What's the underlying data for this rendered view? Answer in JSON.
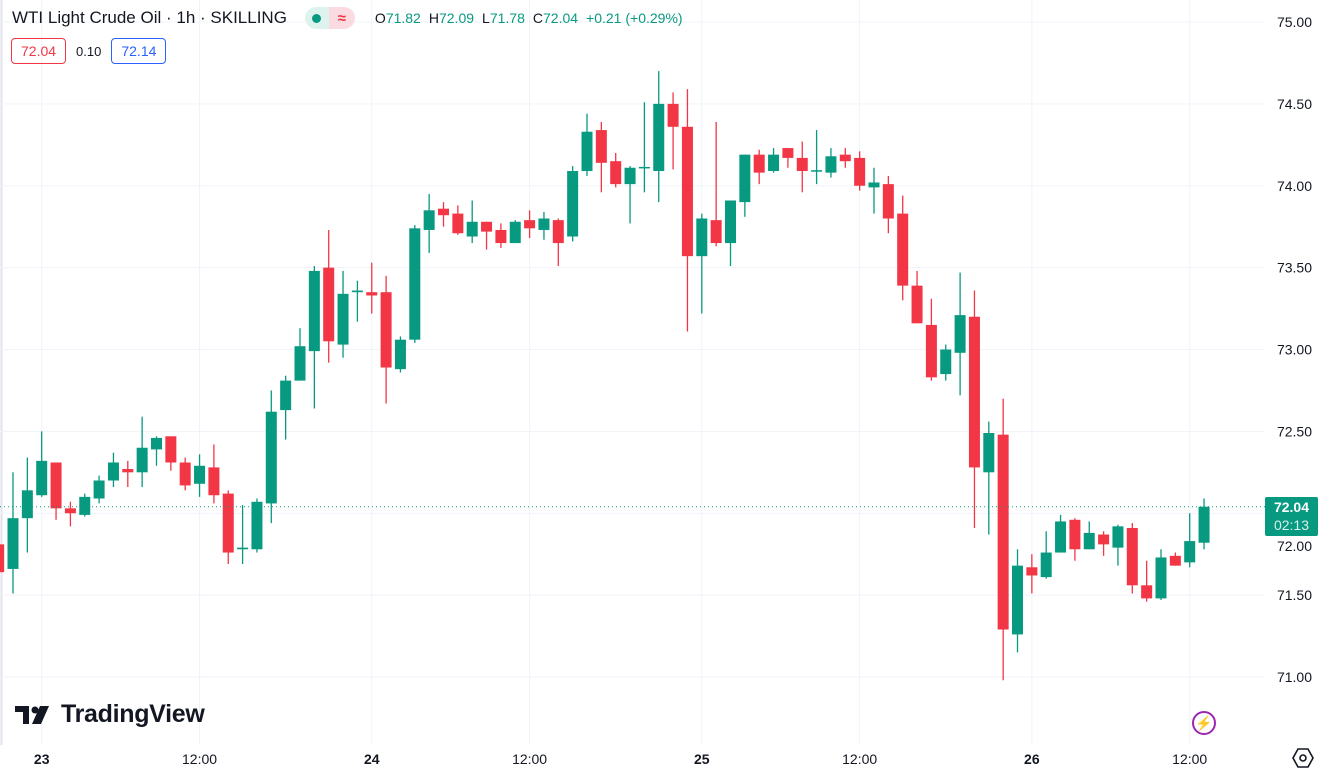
{
  "header": {
    "title": "WTI Light Crude Oil · 1h · SKILLING",
    "status_icon": "market-open-dot-icon",
    "delay_icon": "data-wave-icon",
    "ohlc": {
      "o_key": "O",
      "o": "71.82",
      "h_key": "H",
      "h": "72.09",
      "l_key": "L",
      "l": "71.78",
      "c_key": "C",
      "c": "72.04",
      "change": "+0.21 (+0.29%)"
    },
    "sell_price": "72.04",
    "spread": "0.10",
    "buy_price": "72.14"
  },
  "logo": {
    "text": "TradingView"
  },
  "last_price_label": {
    "price": "72.04",
    "countdown": "02:13"
  },
  "colors": {
    "up": "#089981",
    "down": "#F23645",
    "grid": "#F0F3FA",
    "accent_purple": "#9C27B0"
  },
  "chart_data": {
    "type": "candlestick",
    "title": "WTI Light Crude Oil · 1h · SKILLING",
    "ylim": [
      70.6,
      75.13
    ],
    "yticks": [
      "71.00",
      "71.50",
      "72.00",
      "72.50",
      "73.00",
      "73.50",
      "74.00",
      "74.50",
      "75.00"
    ],
    "xticks": [
      {
        "label": "23",
        "index": 3,
        "bold": true
      },
      {
        "label": "12:00",
        "index": 14
      },
      {
        "label": "24",
        "index": 26,
        "bold": true
      },
      {
        "label": "12:00",
        "index": 37
      },
      {
        "label": "25",
        "index": 49,
        "bold": true
      },
      {
        "label": "12:00",
        "index": 60
      },
      {
        "label": "26",
        "index": 72,
        "bold": true
      },
      {
        "label": "12:00",
        "index": 83
      }
    ],
    "last_price": 72.04,
    "ohlc": [
      [
        71.81,
        71.84,
        71.6,
        71.64
      ],
      [
        71.66,
        72.25,
        71.51,
        71.97
      ],
      [
        71.97,
        72.34,
        71.76,
        72.14
      ],
      [
        72.11,
        72.5,
        72.1,
        72.32
      ],
      [
        72.31,
        72.31,
        71.96,
        72.03
      ],
      [
        72.03,
        72.07,
        71.92,
        72.0
      ],
      [
        71.99,
        72.12,
        71.98,
        72.1
      ],
      [
        72.09,
        72.23,
        72.06,
        72.2
      ],
      [
        72.2,
        72.37,
        72.16,
        72.31
      ],
      [
        72.27,
        72.32,
        72.16,
        72.25
      ],
      [
        72.25,
        72.59,
        72.16,
        72.4
      ],
      [
        72.39,
        72.47,
        72.29,
        72.46
      ],
      [
        72.47,
        72.47,
        72.26,
        72.31
      ],
      [
        72.31,
        72.34,
        72.14,
        72.17
      ],
      [
        72.18,
        72.36,
        72.1,
        72.29
      ],
      [
        72.28,
        72.42,
        72.06,
        72.11
      ],
      [
        72.12,
        72.14,
        71.69,
        71.76
      ],
      [
        71.78,
        72.05,
        71.69,
        71.79
      ],
      [
        71.78,
        72.09,
        71.76,
        72.07
      ],
      [
        72.06,
        72.75,
        71.94,
        72.62
      ],
      [
        72.63,
        72.84,
        72.45,
        72.81
      ],
      [
        72.81,
        73.13,
        72.81,
        73.02
      ],
      [
        72.99,
        73.51,
        72.64,
        73.48
      ],
      [
        73.5,
        73.73,
        72.92,
        73.05
      ],
      [
        73.03,
        73.48,
        72.95,
        73.34
      ],
      [
        73.35,
        73.42,
        73.17,
        73.36
      ],
      [
        73.35,
        73.53,
        73.22,
        73.33
      ],
      [
        73.35,
        73.45,
        72.67,
        72.89
      ],
      [
        72.88,
        73.08,
        72.86,
        73.06
      ],
      [
        73.06,
        73.76,
        73.04,
        73.74
      ],
      [
        73.73,
        73.95,
        73.59,
        73.85
      ],
      [
        73.86,
        73.9,
        73.75,
        73.82
      ],
      [
        73.83,
        73.88,
        73.7,
        73.71
      ],
      [
        73.69,
        73.91,
        73.65,
        73.78
      ],
      [
        73.78,
        73.78,
        73.61,
        73.72
      ],
      [
        73.73,
        73.77,
        73.62,
        73.65
      ],
      [
        73.65,
        73.79,
        73.65,
        73.78
      ],
      [
        73.79,
        73.85,
        73.68,
        73.74
      ],
      [
        73.73,
        73.84,
        73.67,
        73.8
      ],
      [
        73.79,
        73.8,
        73.51,
        73.65
      ],
      [
        73.69,
        74.12,
        73.66,
        74.09
      ],
      [
        74.09,
        74.44,
        74.06,
        74.33
      ],
      [
        74.34,
        74.39,
        73.96,
        74.14
      ],
      [
        74.15,
        74.2,
        73.99,
        74.01
      ],
      [
        74.01,
        74.12,
        73.77,
        74.11
      ],
      [
        74.11,
        74.51,
        73.96,
        74.115
      ],
      [
        74.09,
        74.7,
        73.9,
        74.5
      ],
      [
        74.5,
        74.57,
        74.1,
        74.36
      ],
      [
        74.36,
        74.59,
        73.11,
        73.57
      ],
      [
        73.57,
        73.83,
        73.22,
        73.8
      ],
      [
        73.79,
        74.39,
        73.63,
        73.65
      ],
      [
        73.65,
        73.91,
        73.51,
        73.91
      ],
      [
        73.9,
        74.19,
        73.81,
        74.19
      ],
      [
        74.19,
        74.22,
        74.01,
        74.08
      ],
      [
        74.09,
        74.23,
        74.08,
        74.19
      ],
      [
        74.23,
        74.23,
        74.11,
        74.17
      ],
      [
        74.17,
        74.27,
        73.96,
        74.09
      ],
      [
        74.09,
        74.34,
        74.01,
        74.095
      ],
      [
        74.08,
        74.23,
        74.05,
        74.18
      ],
      [
        74.19,
        74.23,
        74.11,
        74.15
      ],
      [
        74.17,
        74.21,
        73.97,
        74.0
      ],
      [
        73.99,
        74.11,
        73.83,
        74.02
      ],
      [
        74.01,
        74.06,
        73.71,
        73.8
      ],
      [
        73.83,
        73.94,
        73.3,
        73.39
      ],
      [
        73.39,
        73.48,
        73.16,
        73.16
      ],
      [
        73.15,
        73.31,
        72.81,
        72.83
      ],
      [
        72.85,
        73.03,
        72.81,
        73.0
      ],
      [
        72.98,
        73.47,
        72.72,
        73.21
      ],
      [
        73.2,
        73.36,
        71.91,
        72.28
      ],
      [
        72.25,
        72.56,
        71.87,
        72.49
      ],
      [
        72.48,
        72.7,
        70.98,
        71.29
      ],
      [
        71.26,
        71.78,
        71.15,
        71.68
      ],
      [
        71.67,
        71.75,
        71.51,
        71.62
      ],
      [
        71.61,
        71.89,
        71.6,
        71.76
      ],
      [
        71.76,
        71.99,
        71.76,
        71.95
      ],
      [
        71.96,
        71.97,
        71.71,
        71.78
      ],
      [
        71.78,
        71.95,
        71.78,
        71.88
      ],
      [
        71.87,
        71.89,
        71.74,
        71.81
      ],
      [
        71.79,
        71.93,
        71.68,
        71.92
      ],
      [
        71.91,
        71.94,
        71.51,
        71.56
      ],
      [
        71.56,
        71.71,
        71.46,
        71.48
      ],
      [
        71.48,
        71.78,
        71.47,
        71.73
      ],
      [
        71.74,
        71.76,
        71.68,
        71.68
      ],
      [
        71.7,
        72.0,
        71.67,
        71.83
      ],
      [
        71.82,
        72.09,
        71.78,
        72.04
      ]
    ]
  }
}
